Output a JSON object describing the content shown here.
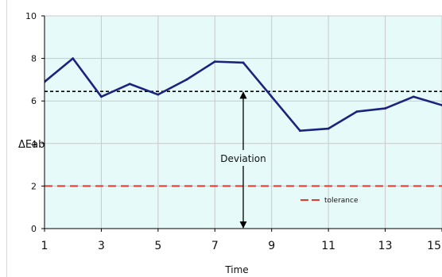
{
  "chart_data": {
    "type": "line",
    "xlabel": "Time",
    "ylabel": "ΔEab",
    "xlim": [
      1,
      15
    ],
    "ylim": [
      0,
      10
    ],
    "x_ticks": [
      "1",
      "3",
      "5",
      "7",
      "9",
      "11",
      "13",
      "15"
    ],
    "y_ticks": [
      "0",
      "2",
      "4",
      "6",
      "8",
      "10"
    ],
    "grid": true,
    "background_color": "#e6fafa",
    "series": [
      {
        "x": [
          1,
          2,
          3,
          4,
          5,
          6,
          7,
          8,
          9,
          10,
          11,
          12,
          13,
          14,
          15
        ],
        "values": [
          6.9,
          8.0,
          6.2,
          6.8,
          6.3,
          7.0,
          7.85,
          7.8,
          6.2,
          4.6,
          4.7,
          5.5,
          5.65,
          6.2,
          5.8
        ],
        "color": "#1a237e"
      }
    ],
    "reference_lines": [
      {
        "y": 6.45,
        "color": "#000000",
        "style": "short-dash"
      },
      {
        "y": 2.0,
        "color": "#e53b2c",
        "style": "long-dash"
      }
    ],
    "legend": {
      "label": "tolerance",
      "color": "#e53b2c",
      "placement": "lower-right"
    },
    "annotation": {
      "label": "Deviation",
      "x": 8,
      "y_from": 6.45,
      "y_to": 0
    }
  }
}
